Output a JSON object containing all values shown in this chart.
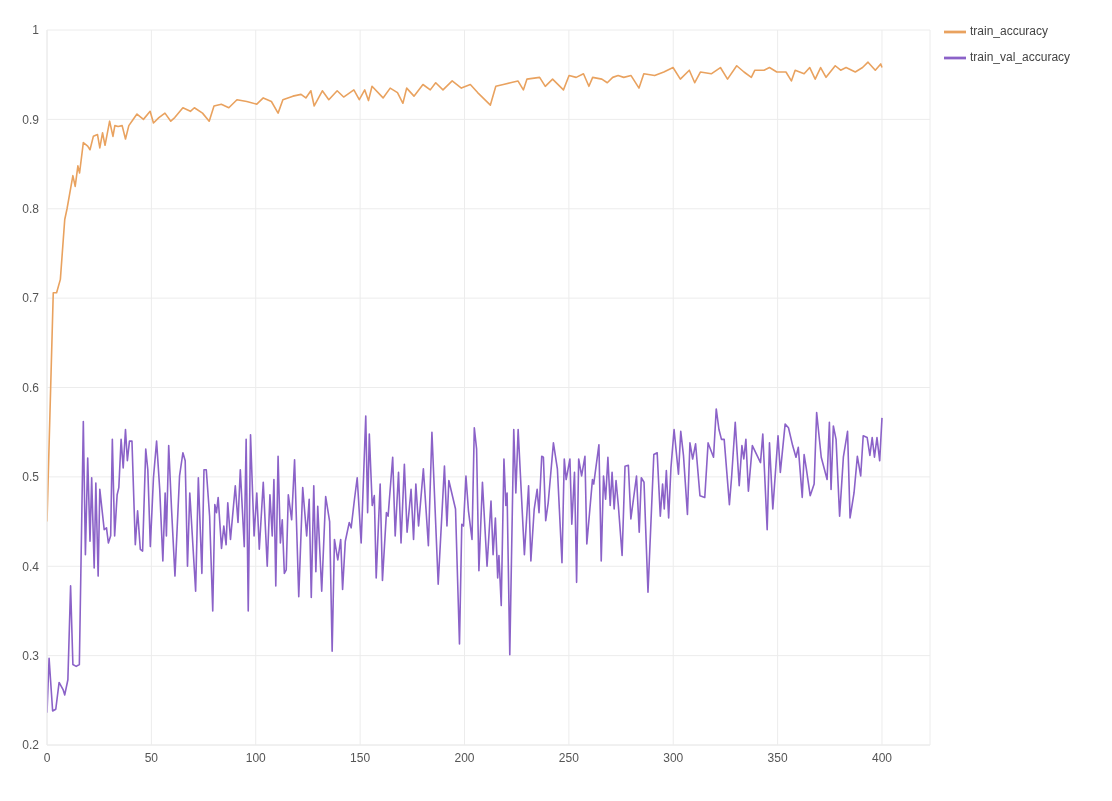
{
  "chart_data": {
    "type": "line",
    "xlim": [
      0,
      423
    ],
    "xticks": [
      0,
      50,
      100,
      150,
      200,
      250,
      300,
      350,
      400
    ],
    "ylim": [
      0.2,
      1
    ],
    "yticks": [
      0.2,
      0.3,
      0.4,
      0.5,
      0.6,
      0.7,
      0.8,
      0.9,
      1
    ],
    "grid": true,
    "legend": "top right",
    "marker": "none",
    "line_style": "solid",
    "series": [
      {
        "name": "train_accuracy",
        "color": "#e9a25f",
        "x": [
          0,
          3,
          4.6,
          6.4,
          8.5,
          9.6,
          12.4,
          13.5,
          14.8,
          15.6,
          17.4,
          19.5,
          20.6,
          22.2,
          24.2,
          25.3,
          26.6,
          27.8,
          30,
          31.6,
          32.5,
          34.1,
          36,
          37.6,
          39.2,
          41,
          43.1,
          46.2,
          49.4,
          51,
          53.6,
          56.5,
          59.3,
          61.2,
          65.1,
          68.7,
          70.6,
          74.5,
          77.7,
          80,
          83.5,
          87.1,
          91,
          95.7,
          100.5,
          103.6,
          107.5,
          110.7,
          113,
          117.8,
          121.7,
          124,
          126.4,
          128,
          131.9,
          135,
          139,
          142.1,
          147,
          149.6,
          152.2,
          154,
          155.7,
          161,
          164.4,
          167.9,
          170.5,
          172.3,
          175.8,
          180.1,
          183.6,
          186.2,
          189.7,
          194.1,
          198.5,
          202.8,
          206.3,
          212.4,
          215,
          218.6,
          222,
          225.6,
          228.2,
          229.9,
          236,
          238.7,
          242.2,
          247.4,
          250.1,
          253.5,
          257,
          259.6,
          261.4,
          265.8,
          268.4,
          271,
          273.6,
          276.3,
          279.8,
          283.6,
          285.9,
          291.1,
          295.5,
          299.9,
          303.4,
          307.7,
          310.3,
          313,
          318.2,
          322.6,
          326,
          330.4,
          333.9,
          337.4,
          339.1,
          343.5,
          346.1,
          349.6,
          354,
          356.6,
          358.4,
          362.7,
          365.4,
          368,
          370.6,
          373.2,
          377.6,
          380.2,
          382.8,
          387.2,
          390.7,
          393.3,
          396.8,
          399.4,
          400
        ],
        "values": [
          0.45,
          0.706,
          0.706,
          0.721,
          0.788,
          0.8,
          0.837,
          0.825,
          0.848,
          0.84,
          0.874,
          0.87,
          0.866,
          0.881,
          0.883,
          0.868,
          0.885,
          0.871,
          0.898,
          0.881,
          0.893,
          0.892,
          0.893,
          0.878,
          0.893,
          0.899,
          0.906,
          0.9,
          0.909,
          0.896,
          0.902,
          0.907,
          0.898,
          0.902,
          0.913,
          0.909,
          0.913,
          0.907,
          0.898,
          0.915,
          0.917,
          0.913,
          0.922,
          0.92,
          0.917,
          0.924,
          0.92,
          0.907,
          0.922,
          0.926,
          0.928,
          0.924,
          0.932,
          0.915,
          0.932,
          0.922,
          0.932,
          0.925,
          0.933,
          0.922,
          0.933,
          0.921,
          0.937,
          0.924,
          0.935,
          0.93,
          0.918,
          0.935,
          0.926,
          0.939,
          0.933,
          0.941,
          0.933,
          0.943,
          0.935,
          0.939,
          0.93,
          0.916,
          0.937,
          0.939,
          0.941,
          0.943,
          0.933,
          0.945,
          0.947,
          0.937,
          0.945,
          0.933,
          0.949,
          0.947,
          0.951,
          0.937,
          0.947,
          0.945,
          0.941,
          0.947,
          0.949,
          0.947,
          0.949,
          0.935,
          0.951,
          0.949,
          0.953,
          0.958,
          0.945,
          0.955,
          0.941,
          0.953,
          0.951,
          0.958,
          0.945,
          0.96,
          0.953,
          0.947,
          0.955,
          0.955,
          0.958,
          0.953,
          0.953,
          0.943,
          0.955,
          0.951,
          0.958,
          0.945,
          0.958,
          0.947,
          0.96,
          0.955,
          0.958,
          0.953,
          0.958,
          0.964,
          0.955,
          0.962,
          0.958
        ]
      },
      {
        "name": "train_val_accuracy",
        "color": "#8b62c8",
        "x": [
          0,
          1,
          2.7,
          4.2,
          5.8,
          7.7,
          8.5,
          10,
          11.3,
          12.4,
          14,
          15.5,
          17.4,
          18.4,
          19.5,
          20.6,
          21.4,
          22.6,
          23.4,
          24.5,
          25.3,
          27.4,
          28.5,
          29.4,
          30.5,
          31.3,
          32.4,
          33.6,
          34.4,
          35.5,
          36.5,
          37.6,
          38.5,
          39.5,
          40.7,
          42.3,
          43.4,
          44.7,
          45.8,
          47.3,
          48.3,
          49.5,
          51,
          52.5,
          54,
          55.5,
          56.6,
          57.2,
          58.3,
          59.7,
          61.3,
          63.5,
          65.1,
          66.2,
          67.3,
          68.4,
          71.2,
          72.5,
          74.2,
          75.2,
          76.3,
          77.9,
          79.4,
          80.4,
          81.2,
          82,
          83.6,
          84.7,
          85.8,
          86.6,
          87.9,
          90.2,
          91.5,
          92.6,
          94.5,
          95.4,
          96.4,
          97.5,
          99.2,
          100.5,
          101.7,
          103.6,
          105.5,
          106.8,
          107.9,
          108.7,
          109.6,
          110.7,
          111.8,
          112.7,
          113.7,
          114.6,
          115.6,
          117.2,
          118.6,
          120.6,
          122.5,
          124.4,
          125.6,
          126.6,
          127.8,
          128.8,
          129.7,
          131.6,
          133.5,
          135.4,
          136.6,
          137.7,
          139.3,
          140.7,
          141.6,
          142.9,
          144.8,
          145.7,
          147.3,
          148.6,
          150.5,
          152.7,
          153.6,
          154.4,
          155.8,
          156.8,
          157.7,
          159.6,
          160.7,
          162.6,
          163.4,
          165.6,
          166.8,
          168.4,
          169.6,
          171.2,
          172.5,
          174.4,
          175.6,
          176.7,
          178,
          180.3,
          182.7,
          184.4,
          187.4,
          190.4,
          191.6,
          192.5,
          195.7,
          197.6,
          198.7,
          199.5,
          200.7,
          201.9,
          203.6,
          204.7,
          205.8,
          206.9,
          208.6,
          210.8,
          212.7,
          213.7,
          214.8,
          215.9,
          216.5,
          217.6,
          218.9,
          219.8,
          220.4,
          221.7,
          223.6,
          224.6,
          225.7,
          228.7,
          230.7,
          231.8,
          233.4,
          234.8,
          235.7,
          237,
          237.8,
          238.9,
          240.1,
          242.6,
          244.5,
          246.7,
          247.8,
          248.7,
          250.5,
          251.4,
          252.7,
          253.7,
          254.7,
          256.1,
          257.7,
          258.6,
          261.3,
          261.9,
          264.4,
          265.5,
          266.6,
          267.6,
          268.7,
          269.8,
          270.7,
          271.7,
          272.6,
          273.7,
          275.5,
          276.9,
          278.5,
          279.7,
          282.4,
          283.7,
          284.7,
          286,
          287.9,
          290.7,
          292.3,
          293.8,
          294.9,
          295.7,
          296.7,
          297.8,
          298.9,
          300.4,
          302.5,
          303.6,
          304.9,
          306.8,
          308,
          309.3,
          310.7,
          312.8,
          315.1,
          316.7,
          319.3,
          320.6,
          321.9,
          323.1,
          324.4,
          326.9,
          328,
          329.7,
          331.6,
          332.9,
          333.8,
          334.8,
          336,
          337.9,
          341.8,
          342.9,
          345,
          346.1,
          347.7,
          350.2,
          351.3,
          353.6,
          355.2,
          357.2,
          358.8,
          359.9,
          361.8,
          362.7,
          363.7,
          365.6,
          367.5,
          368.7,
          370.9,
          373.7,
          374.8,
          375.6,
          376.7,
          378,
          379.7,
          381.5,
          383.5,
          384.7,
          386.6,
          388.2,
          389.8,
          391,
          392.9,
          394.2,
          395.3,
          396.4,
          397.6,
          398.9,
          400
        ],
        "values": [
          0.236,
          0.297,
          0.238,
          0.24,
          0.27,
          0.262,
          0.256,
          0.273,
          0.378,
          0.29,
          0.288,
          0.29,
          0.562,
          0.413,
          0.521,
          0.428,
          0.499,
          0.398,
          0.493,
          0.389,
          0.486,
          0.441,
          0.443,
          0.426,
          0.434,
          0.542,
          0.434,
          0.48,
          0.488,
          0.542,
          0.51,
          0.553,
          0.518,
          0.54,
          0.54,
          0.424,
          0.462,
          0.419,
          0.417,
          0.531,
          0.508,
          0.422,
          0.499,
          0.54,
          0.486,
          0.406,
          0.482,
          0.434,
          0.535,
          0.462,
          0.389,
          0.501,
          0.527,
          0.518,
          0.4,
          0.482,
          0.372,
          0.499,
          0.392,
          0.508,
          0.508,
          0.456,
          0.35,
          0.469,
          0.46,
          0.477,
          0.42,
          0.445,
          0.424,
          0.471,
          0.43,
          0.49,
          0.449,
          0.508,
          0.422,
          0.542,
          0.35,
          0.547,
          0.434,
          0.482,
          0.419,
          0.494,
          0.4,
          0.48,
          0.434,
          0.497,
          0.378,
          0.523,
          0.426,
          0.452,
          0.392,
          0.396,
          0.48,
          0.452,
          0.519,
          0.366,
          0.488,
          0.434,
          0.475,
          0.365,
          0.49,
          0.394,
          0.467,
          0.372,
          0.478,
          0.45,
          0.305,
          0.43,
          0.407,
          0.43,
          0.374,
          0.428,
          0.449,
          0.443,
          0.475,
          0.499,
          0.426,
          0.568,
          0.46,
          0.548,
          0.468,
          0.479,
          0.387,
          0.492,
          0.384,
          0.46,
          0.456,
          0.522,
          0.434,
          0.505,
          0.426,
          0.514,
          0.438,
          0.486,
          0.43,
          0.492,
          0.445,
          0.509,
          0.423,
          0.55,
          0.38,
          0.512,
          0.445,
          0.496,
          0.464,
          0.313,
          0.447,
          0.445,
          0.501,
          0.462,
          0.43,
          0.555,
          0.531,
          0.395,
          0.494,
          0.4,
          0.473,
          0.413,
          0.454,
          0.387,
          0.412,
          0.356,
          0.52,
          0.468,
          0.482,
          0.301,
          0.553,
          0.482,
          0.553,
          0.413,
          0.49,
          0.406,
          0.464,
          0.486,
          0.46,
          0.523,
          0.522,
          0.451,
          0.471,
          0.538,
          0.509,
          0.404,
          0.52,
          0.497,
          0.52,
          0.447,
          0.505,
          0.382,
          0.52,
          0.501,
          0.523,
          0.425,
          0.497,
          0.492,
          0.536,
          0.406,
          0.501,
          0.475,
          0.522,
          0.468,
          0.505,
          0.464,
          0.496,
          0.468,
          0.412,
          0.512,
          0.513,
          0.453,
          0.501,
          0.438,
          0.499,
          0.494,
          0.371,
          0.525,
          0.527,
          0.456,
          0.492,
          0.464,
          0.507,
          0.454,
          0.51,
          0.553,
          0.503,
          0.551,
          0.524,
          0.458,
          0.538,
          0.52,
          0.537,
          0.479,
          0.477,
          0.538,
          0.522,
          0.576,
          0.553,
          0.542,
          0.542,
          0.469,
          0.501,
          0.561,
          0.49,
          0.535,
          0.52,
          0.542,
          0.484,
          0.535,
          0.516,
          0.548,
          0.441,
          0.538,
          0.464,
          0.546,
          0.505,
          0.559,
          0.555,
          0.535,
          0.522,
          0.533,
          0.477,
          0.525,
          0.51,
          0.479,
          0.492,
          0.572,
          0.522,
          0.497,
          0.561,
          0.486,
          0.557,
          0.542,
          0.456,
          0.522,
          0.551,
          0.454,
          0.482,
          0.523,
          0.501,
          0.546,
          0.544,
          0.524,
          0.544,
          0.522,
          0.544,
          0.518,
          0.566
        ]
      }
    ]
  }
}
